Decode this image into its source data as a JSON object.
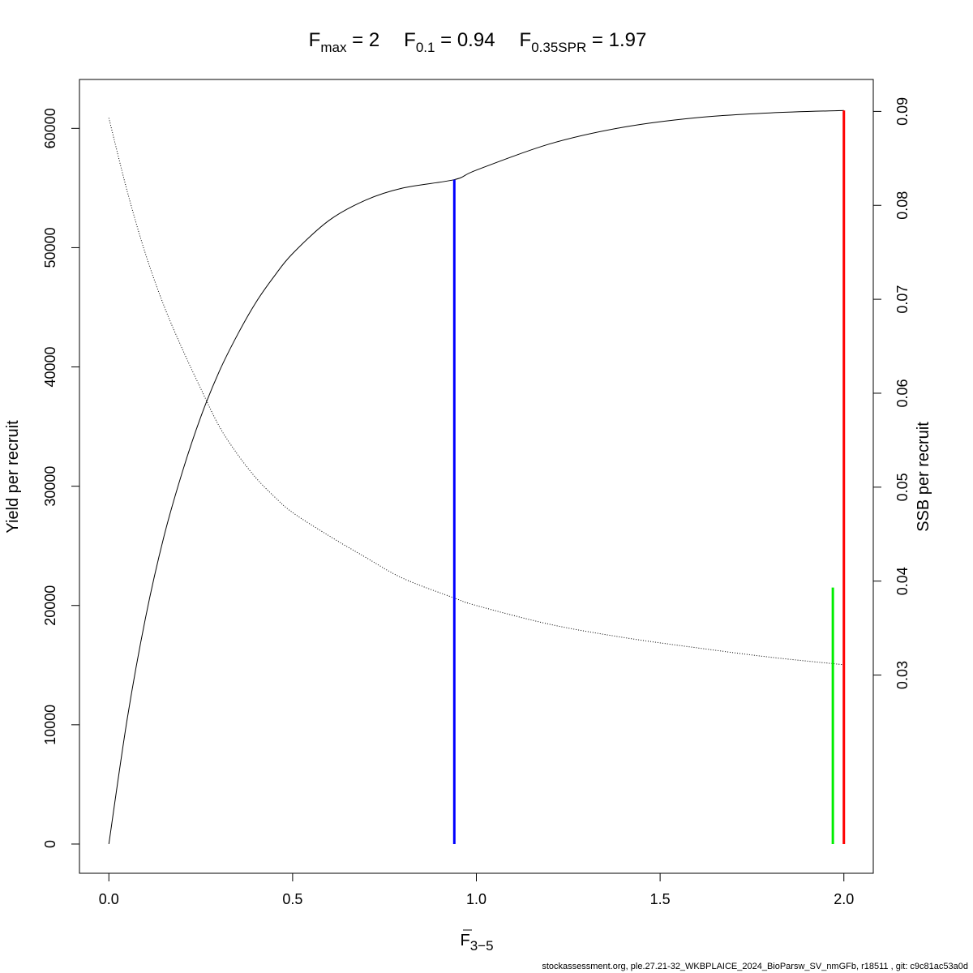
{
  "chart_data": {
    "type": "line",
    "title": {
      "fmax": {
        "base": "F",
        "sub": "max",
        "rest": " = 2"
      },
      "f01": {
        "base": "F",
        "sub": "0.1",
        "rest": " = 0.94"
      },
      "fspr": {
        "base": "F",
        "sub": "0.35SPR",
        "rest": " = 1.97"
      }
    },
    "xlabel": {
      "base": "F",
      "sub": "3−5"
    },
    "ylabel_left": "Yield per recruit",
    "ylabel_right": "SSB per recruit",
    "xlim": [
      -0.08,
      2.08
    ],
    "ylim_left": [
      -2450,
      64100
    ],
    "ylim_right": [
      0.0089,
      0.0934
    ],
    "x_ticks": [
      0.0,
      0.5,
      1.0,
      1.5,
      2.0
    ],
    "x_tick_labels": [
      "0.0",
      "0.5",
      "1.0",
      "1.5",
      "2.0"
    ],
    "y_left_ticks": [
      0,
      10000,
      20000,
      30000,
      40000,
      50000,
      60000
    ],
    "y_left_tick_labels": [
      "0",
      "10000",
      "20000",
      "30000",
      "40000",
      "50000",
      "60000"
    ],
    "y_right_ticks": [
      0.03,
      0.04,
      0.05,
      0.06,
      0.07,
      0.08,
      0.09
    ],
    "y_right_tick_labels": [
      "0.03",
      "0.04",
      "0.05",
      "0.06",
      "0.07",
      "0.08",
      "0.09"
    ],
    "series": [
      {
        "axis": "left",
        "style": "solid",
        "color": "#000000",
        "x": [
          0,
          0.05,
          0.1,
          0.15,
          0.2,
          0.25,
          0.3,
          0.35,
          0.4,
          0.45,
          0.5,
          0.6,
          0.7,
          0.8,
          0.94,
          1.0,
          1.2,
          1.4,
          1.6,
          1.8,
          2.0
        ],
        "y": [
          0,
          10500,
          19000,
          25800,
          31200,
          35800,
          39600,
          42700,
          45400,
          47600,
          49500,
          52300,
          54000,
          55000,
          55700,
          56500,
          58700,
          60100,
          60900,
          61300,
          61500
        ]
      },
      {
        "axis": "right",
        "style": "dotted",
        "color": "#000000",
        "x": [
          0,
          0.05,
          0.1,
          0.15,
          0.2,
          0.25,
          0.3,
          0.35,
          0.4,
          0.45,
          0.5,
          0.6,
          0.7,
          0.8,
          0.94,
          1.0,
          1.2,
          1.4,
          1.6,
          1.8,
          2.0
        ],
        "y": [
          0.0893,
          0.0815,
          0.0748,
          0.0693,
          0.0647,
          0.0605,
          0.0565,
          0.0535,
          0.051,
          0.049,
          0.0473,
          0.0448,
          0.0425,
          0.0403,
          0.0382,
          0.0374,
          0.0354,
          0.034,
          0.0329,
          0.0319,
          0.0311
        ]
      }
    ],
    "reference_lines": [
      {
        "name": "Fmax",
        "x": 2.0,
        "y_from": 0,
        "y_to": 61500,
        "color": "#ff0000"
      },
      {
        "name": "F0.1",
        "x": 0.94,
        "y_from": 0,
        "y_to": 55700,
        "color": "#0000ff"
      },
      {
        "name": "F0.35SPR",
        "x": 1.97,
        "y_from": 0,
        "y_to": 21500,
        "color": "#00ee00"
      }
    ],
    "grid": false,
    "legend": "none"
  },
  "footer": "stockassessment.org, ple.27.21-32_WKBPLAICE_2024_BioParsw_SV_nmGFb, r18511 , git: c9c81ac53a0d"
}
